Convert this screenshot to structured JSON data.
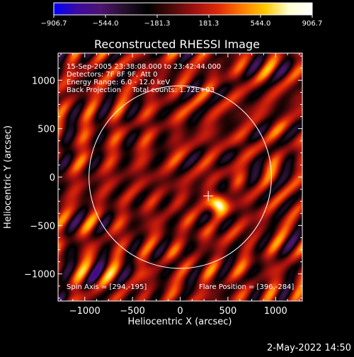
{
  "chart_data": {
    "type": "heatmap",
    "title": "Reconstructed RHESSI Image",
    "xlabel": "Heliocentric X (arcsec)",
    "ylabel": "Heliocentric Y (arcsec)",
    "xlim": [
      -1280,
      1280
    ],
    "ylim": [
      -1280,
      1280
    ],
    "x_ticks": [
      -1000,
      -500,
      0,
      500,
      1000
    ],
    "y_ticks": [
      -1000,
      -500,
      0,
      500,
      1000
    ],
    "x_tick_labels": [
      "−1000",
      "−500",
      "0",
      "500",
      "1000"
    ],
    "y_tick_labels": [
      "−1000",
      "−500",
      "0",
      "500",
      "1000"
    ],
    "colorbar": {
      "min": -906.7,
      "max": 906.7,
      "ticks": [
        -906.7,
        -544.0,
        -181.3,
        181.3,
        544.0,
        906.7
      ],
      "tick_labels": [
        "−906.7",
        "−544.0",
        "−181.3",
        "181.3",
        "544.0",
        "906.7"
      ],
      "colors": [
        "#0000ff",
        "#3c0aa0",
        "#4d1470",
        "#25102c",
        "#000000",
        "#4a0a0a",
        "#a01010",
        "#e02a08",
        "#ff7a00",
        "#ffc800",
        "#ffffd0",
        "#ffffff"
      ]
    },
    "info_lines": [
      "15-Sep-2005 23:38:08.000 to 23:42:44.000",
      "Detectors: 7F 8F 9F, Att 0",
      "Energy Range: 6.0 - 12.0 keV",
      "Back Projection     Total counts: 1.72E+03"
    ],
    "spin_axis_text": "Spin Axis = [294,-195]",
    "flare_position_text": "Flare Position = [396,-284]",
    "spin_axis": [
      294,
      -195
    ],
    "flare_position": [
      396,
      -284
    ],
    "solar_limb_radius": 956,
    "solar_limb_center": [
      0,
      0
    ]
  },
  "footer": {
    "timestamp": "2-May-2022 14:50"
  }
}
